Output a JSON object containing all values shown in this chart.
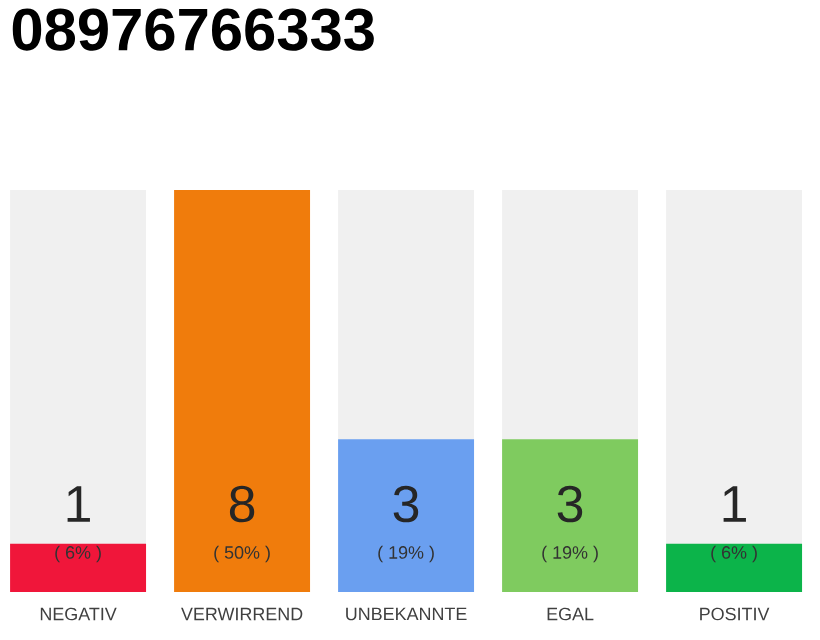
{
  "chart_data": {
    "type": "bar",
    "title": "08976766333",
    "categories": [
      "NEGATIV",
      "VERWIRREND",
      "UNBEKANNTE",
      "EGAL",
      "POSITIV"
    ],
    "values": [
      6,
      50,
      19,
      19,
      6
    ],
    "colors": [
      "#f0163a",
      "#f07c0c",
      "#6a9ff0",
      "#7fcb5f",
      "#0cb44a"
    ],
    "value_labels": [
      "( 6% )",
      "( 50% )",
      "( 19% )",
      "( 19% )",
      "( 6% )"
    ],
    "annotations": [
      "1",
      "8",
      "3",
      "3",
      "1"
    ]
  }
}
